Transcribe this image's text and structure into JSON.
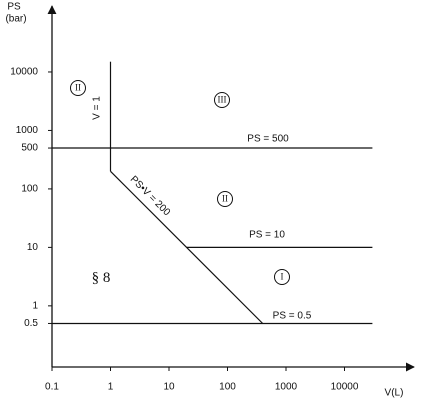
{
  "chart_data": {
    "type": "line",
    "xlabel": "V(L)",
    "ylabel": "PS",
    "yunit": "(bar)",
    "xscale": "log",
    "yscale": "log",
    "xlim": [
      0.1,
      100000
    ],
    "ylim": [
      0.09,
      100000
    ],
    "xticks": [
      0.1,
      1,
      10,
      100,
      1000,
      10000
    ],
    "yticks": [
      0.5,
      1,
      10,
      100,
      500,
      1000,
      10000
    ],
    "series": [
      {
        "name": "V = 1",
        "color": "#111111",
        "x": [
          1,
          1
        ],
        "values": [
          200,
          15000
        ]
      },
      {
        "name": "PS•V = 200",
        "color": "#111111",
        "x": [
          1,
          400
        ],
        "values": [
          200,
          0.5
        ]
      },
      {
        "name": "PS = 500",
        "color": "#111111",
        "x": [
          0.1,
          30000
        ],
        "values": [
          500,
          500
        ]
      },
      {
        "name": "PS = 10",
        "color": "#111111",
        "x": [
          20,
          30000
        ],
        "values": [
          10,
          10
        ]
      },
      {
        "name": "PS = 0.5",
        "color": "#111111",
        "x": [
          0.1,
          30000
        ],
        "values": [
          0.5,
          0.5
        ]
      }
    ],
    "annotations": [
      "II",
      "III",
      "II",
      "I",
      "§ 8"
    ]
  }
}
